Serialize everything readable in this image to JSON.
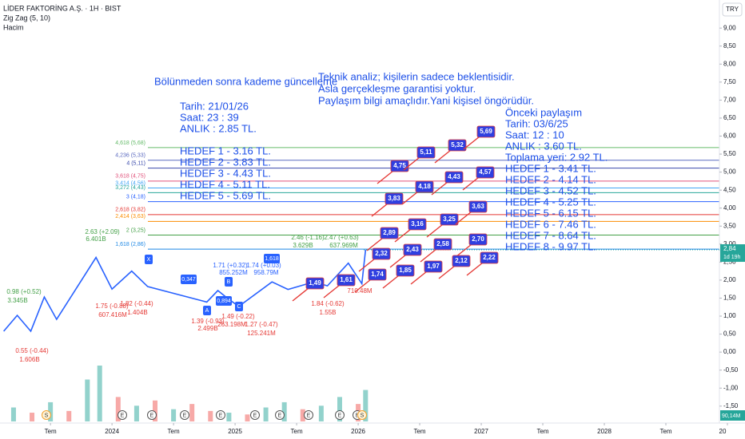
{
  "header": {
    "symbol": "LİDER FAKTORİNG A.Ş. · 1H · BIST",
    "indicator": "Zig Zag (5, 10)",
    "volume_label": "Hacim",
    "currency": "TRY"
  },
  "chart_data": {
    "type": "line",
    "x": [
      2023.12,
      2023.23,
      2023.34,
      2023.45,
      2023.55,
      2023.87,
      2024.0,
      2024.16,
      2024.29,
      2024.77,
      2024.86,
      2024.94,
      2025.03,
      2025.3,
      2025.43,
      2025.64,
      2025.75,
      2025.92,
      2026.03,
      2026.06
    ],
    "series": [
      {
        "color": "#2962ff",
        "values": [
          0.58,
          1.02,
          0.58,
          1.53,
          0.91,
          2.63,
          1.75,
          2.25,
          1.82,
          1.39,
          1.71,
          1.49,
          1.27,
          1.95,
          1.74,
          1.95,
          1.84,
          2.47,
          1.9,
          2.84
        ]
      }
    ],
    "xlim": [
      2023.09,
      2029.0
    ],
    "xticks": [
      {
        "value": 2023.5,
        "label": "Tem"
      },
      2024,
      {
        "value": 2024.5,
        "label": "Tem"
      },
      2025,
      {
        "value": 2025.5,
        "label": "Tem"
      },
      2026,
      {
        "value": 2026.5,
        "label": "Tem"
      },
      2027,
      {
        "value": 2027.5,
        "label": "Tem"
      },
      2028,
      {
        "value": 2028.5,
        "label": "Tem"
      },
      {
        "value": 2029,
        "label": "20"
      }
    ],
    "ylim": [
      -1.97,
      9.78
    ],
    "yticks": [
      {
        "value": 9,
        "label": "9,00"
      },
      {
        "value": 8.5,
        "label": "8,50"
      },
      {
        "value": 8,
        "label": "8,00"
      },
      {
        "value": 7.5,
        "label": "7,50"
      },
      {
        "value": 7,
        "label": "7,00"
      },
      {
        "value": 6.5,
        "label": "6,50"
      },
      {
        "value": 6,
        "label": "6,00"
      },
      {
        "value": 5.5,
        "label": "5,50"
      },
      {
        "value": 5,
        "label": "5,00"
      },
      {
        "value": 4.5,
        "label": "4,50"
      },
      {
        "value": 4,
        "label": "4,00"
      },
      {
        "value": 3.5,
        "label": "3,50"
      },
      {
        "value": 3,
        "label": "3,00"
      },
      {
        "value": 2.5,
        "label": "2,50"
      },
      {
        "value": 2,
        "label": "2,00"
      },
      {
        "value": 1.5,
        "label": "1,50"
      },
      {
        "value": 1,
        "label": "1,00"
      },
      {
        "value": 0.5,
        "label": "0,50"
      },
      {
        "value": 0,
        "label": "0,00"
      },
      {
        "value": -0.5,
        "label": "-0,50"
      },
      {
        "value": -1,
        "label": "-1,00"
      },
      {
        "value": -1.5,
        "label": "-1,50"
      }
    ],
    "last_price": {
      "value": 2.84,
      "label": "2,84"
    },
    "countdown": "1d 19h",
    "volume": {
      "x": [
        2023.2,
        2023.35,
        2023.5,
        2023.65,
        2023.8,
        2023.9,
        2024.05,
        2024.2,
        2024.35,
        2024.5,
        2024.65,
        2024.8,
        2024.95,
        2025.1,
        2025.25,
        2025.4,
        2025.55,
        2025.7,
        2025.85,
        2026.0,
        2026.06
      ],
      "values": [
        40,
        25,
        55,
        30,
        120,
        160,
        70,
        45,
        60,
        35,
        50,
        30,
        25,
        20,
        40,
        55,
        35,
        45,
        70,
        50,
        90.14
      ],
      "value_labels": [
        null,
        null,
        null,
        null,
        null,
        null,
        null,
        null,
        null,
        null,
        null,
        null,
        null,
        null,
        null,
        null,
        null,
        null,
        null,
        null,
        "90,14M"
      ],
      "colors": [
        "#26a69a",
        "#ef5350",
        "#26a69a",
        "#ef5350",
        "#26a69a",
        "#26a69a",
        "#ef5350",
        "#26a69a",
        "#ef5350",
        "#26a69a",
        "#ef5350",
        "#ef5350",
        "#26a69a",
        "#ef5350",
        "#26a69a",
        "#26a69a",
        "#ef5350",
        "#26a69a",
        "#26a69a",
        "#ef5350",
        "#26a69a"
      ]
    },
    "fib_levels": [
      {
        "label": "4,618 (5,68)",
        "price": 5.68,
        "color": "#66bb6a"
      },
      {
        "label": "4,236 (5,33)",
        "price": 5.33,
        "color": "#5c6bc0"
      },
      {
        "label": "4 (5,11)",
        "price": 5.11,
        "color": "#3949ab"
      },
      {
        "label": "3,618 (4,75)",
        "price": 4.75,
        "color": "#e0507a"
      },
      {
        "label": "3,414 (4,56)",
        "price": 4.56,
        "color": "#42a5f5"
      },
      {
        "label": "3,272 (4,43)",
        "price": 4.43,
        "color": "#26a69a"
      },
      {
        "label": "3 (4,18)",
        "price": 4.18,
        "color": "#2962ff"
      },
      {
        "label": "2,618 (3,82)",
        "price": 3.82,
        "color": "#e53935"
      },
      {
        "label": "2,414 (3,63)",
        "price": 3.63,
        "color": "#fb8c00"
      },
      {
        "label": "2 (3,25)",
        "price": 3.25,
        "color": "#43a047"
      },
      {
        "label": "1,618 (2,86)",
        "price": 2.86,
        "color": "#1e88e5"
      }
    ]
  },
  "pivot_labels": [
    "2.63 (+2.09)",
    "6.401B",
    "0.98 (+0.52)",
    "3.345B",
    "1.75 (-0.88)",
    "607.416M",
    "1.82 (-0.44)",
    "1.404B",
    "1.39 (-0.93)",
    "2.499B",
    "1.49 (-0.22)",
    "263.198M",
    "1.27 (-0.47)",
    "125.241M",
    "1.84 (-0.62)",
    "1.55B",
    "2.46 (-1.16)",
    "3.629B",
    "2.47 (+0.63)",
    "637.969M",
    "1.71 (+0.32)",
    "855.252M",
    "1.74 (+0.03)",
    "958.79M",
    "0.55 (-0.44)",
    "1.606B",
    "710.48M"
  ],
  "wave_labels": [
    "A",
    "B",
    "C",
    "X",
    "1,618",
    "0,894",
    "0,347"
  ],
  "note_split": {
    "title": "Bölünmeden sonra kademe güncelleme",
    "lines": [
      "Tarih:    21/01/26",
      "Saat:       23 : 39",
      "ANLIK : 2.85 TL."
    ],
    "targets": [
      "HEDEF    1 - 3.16 TL.",
      "HEDEF    2 - 3.83 TL.",
      "HEDEF    3 - 4.43 TL.",
      "HEDEF    4 - 5.11 TL.",
      "HEDEF    5 - 5.69 TL."
    ]
  },
  "disclaimer": [
    "Teknik analiz; kişilerin sadece beklentisidir.",
    "Asla gerçekleşme garantisi yoktur.",
    "Paylaşım bilgi amaçlıdır.Yani kişisel öngörüdür."
  ],
  "note_previous": [
    "Önceki paylaşım",
    "Tarih:    03/6/25",
    "Saat:       12 : 10",
    "ANLIK :  3.60 TL.",
    "Toplama yeri: 2.92 TL.",
    "HEDEF 1 - 3.41 TL.",
    "HEDEF 2 - 4.14 TL.",
    "HEDEF 3 - 4.52 TL.",
    "HEDEF 4 - 5.25 TL.",
    "HEDEF 5 - 6.15 TL.",
    "HEDEF 6 - 7.46 TL.",
    "HEDEF 7 - 8.64 TL.",
    "HEDEF 8 - 9.97 TL."
  ],
  "target_boxes": [
    "4,75",
    "5,11",
    "5,32",
    "5,69",
    "3,83",
    "4,18",
    "4,43",
    "4,57",
    "2,89",
    "3,16",
    "3,25",
    "3,63",
    "2,32",
    "2,43",
    "2,58",
    "2,70",
    "1,74",
    "1,85",
    "1,97",
    "2,12",
    "2,22",
    "1,49",
    "1,61"
  ],
  "event_markers": [
    "S",
    "E",
    "E",
    "E",
    "E",
    "E",
    "E",
    "E",
    "E",
    "E",
    "S"
  ]
}
